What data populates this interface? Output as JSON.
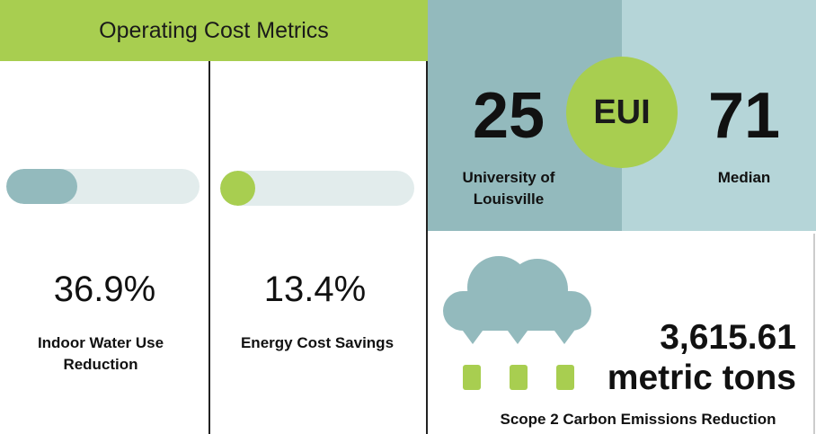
{
  "header": {
    "title": "Operating Cost Metrics"
  },
  "colors": {
    "green": "#a8ce50",
    "teal": "#93babd",
    "light_teal": "#b5d5d8",
    "track": "#e2ecec"
  },
  "metrics": [
    {
      "value": "36.9%",
      "label_line1": "Indoor Water Use",
      "label_line2": "Reduction",
      "progress": 0.369
    },
    {
      "value": "13.4%",
      "label_line1": "Energy Cost Savings",
      "progress": 0.134
    }
  ],
  "eui": {
    "badge": "EUI",
    "left_value": "25",
    "left_label_line1": "University of",
    "left_label_line2": "Louisville",
    "right_value": "71",
    "right_label": "Median"
  },
  "carbon": {
    "icon": "cloud-rain-icon",
    "value": "3,615.61",
    "unit": "metric tons",
    "label": "Scope 2 Carbon Emissions Reduction"
  }
}
